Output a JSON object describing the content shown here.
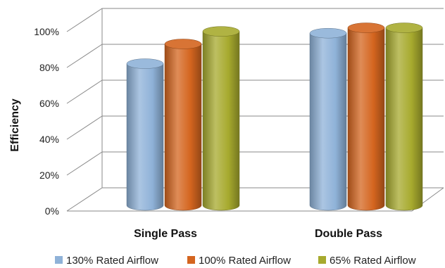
{
  "chart_data": {
    "type": "bar",
    "categories": [
      "Single Pass",
      "Double Pass"
    ],
    "series": [
      {
        "name": "130% Rated Airflow",
        "values": [
          79,
          96
        ],
        "color": "#8fb2d8"
      },
      {
        "name": "100% Rated Airflow",
        "values": [
          90,
          99
        ],
        "color": "#d4651f"
      },
      {
        "name": "65% Rated Airflow",
        "values": [
          97,
          99
        ],
        "color": "#a7aa2e"
      }
    ],
    "ylabel": "Efficiency",
    "ylim": [
      0,
      100
    ],
    "yticks": [
      "0%",
      "20%",
      "40%",
      "60%",
      "80%",
      "100%"
    ],
    "grid": true,
    "legend_position": "bottom",
    "style": "3d-cylinder"
  }
}
